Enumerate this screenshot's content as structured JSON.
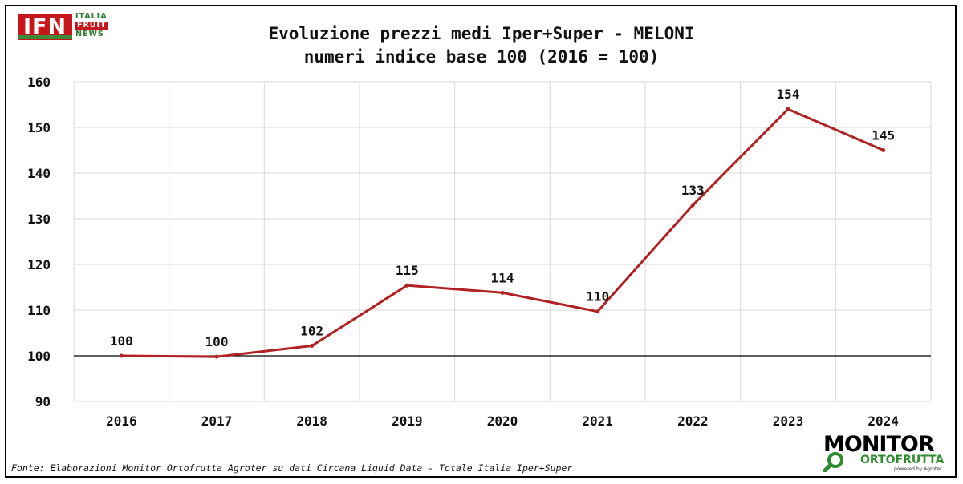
{
  "logo_left": {
    "main": "IFN",
    "line1": "ITALIA",
    "line2": "FRUIT",
    "line3": "NEWS"
  },
  "logo_right": {
    "main": "MONITOR",
    "sub": "ORTOFRUTTA",
    "powered": "powered by Agroter"
  },
  "footer": "Fonte: Elaborazioni Monitor Ortofrutta Agroter su dati Circana Liquid Data - Totale Italia Iper+Super",
  "colors": {
    "line": "#b22222",
    "grid": "#d9d9d9",
    "baseline": "#000000"
  },
  "chart_data": {
    "type": "line",
    "title": "Evoluzione prezzi medi Iper+Super - MELONI",
    "subtitle": "numeri indice base 100 (2016 = 100)",
    "xlabel": "",
    "ylabel": "",
    "categories": [
      "2016",
      "2017",
      "2018",
      "2019",
      "2020",
      "2021",
      "2022",
      "2023",
      "2024"
    ],
    "series": [
      {
        "values": [
          100,
          99.8,
          102.2,
          115.4,
          113.8,
          109.7,
          133.0,
          154.0,
          145.0
        ],
        "labels": [
          "100",
          "100",
          "102",
          "115",
          "114",
          "110",
          "133",
          "154",
          "145"
        ]
      }
    ],
    "ylim": [
      90,
      160
    ],
    "yticks": [
      "90",
      "100",
      "110",
      "120",
      "130",
      "140",
      "150",
      "160"
    ],
    "reference_line": 100,
    "grid": true,
    "legend": "none"
  }
}
